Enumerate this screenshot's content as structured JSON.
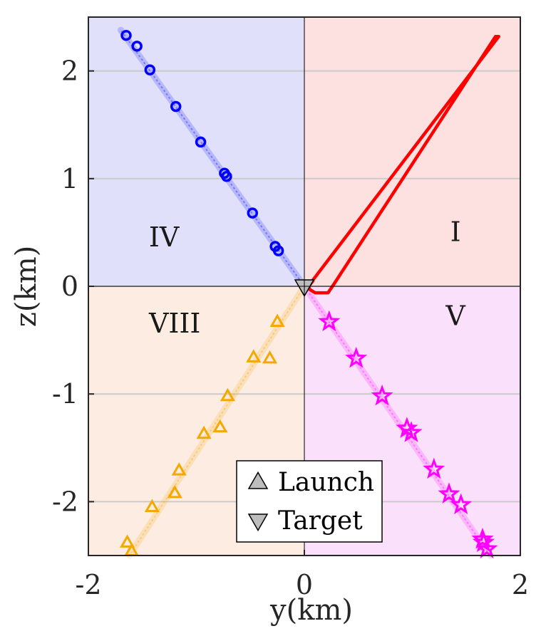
{
  "chart_data": {
    "type": "scatter",
    "xlabel": "y(km)",
    "ylabel": "z(km)",
    "xlim": [
      -2,
      2
    ],
    "ylim": [
      -2.5,
      2.5
    ],
    "x_ticks": [
      -2,
      0,
      2
    ],
    "y_ticks": [
      -2,
      -1,
      0,
      1,
      2
    ],
    "x_tick_labels": [
      "-2",
      "0",
      "2"
    ],
    "y_tick_labels": [
      "-2",
      "-1",
      "0",
      "1",
      "2"
    ],
    "grid": "horizontal lines",
    "legend_position": "bottom-center",
    "legend": [
      {
        "label": "Launch",
        "marker": "triangle-up"
      },
      {
        "label": "Target",
        "marker": "triangle-down"
      }
    ],
    "regions": [
      {
        "label": "I",
        "x": [
          0,
          2
        ],
        "y": [
          0,
          2.5
        ],
        "color": "#fde0e0",
        "label_at": [
          1.4,
          0.5
        ]
      },
      {
        "label": "IV",
        "x": [
          -2,
          0
        ],
        "y": [
          0,
          2.5
        ],
        "color": "#e0e0fa",
        "label_at": [
          -1.3,
          0.45
        ]
      },
      {
        "label": "V",
        "x": [
          0,
          2
        ],
        "y": [
          -2.5,
          0
        ],
        "color": "#fbe0fb",
        "label_at": [
          1.4,
          -0.28
        ]
      },
      {
        "label": "VIII",
        "x": [
          -2,
          0
        ],
        "y": [
          -2.5,
          0
        ],
        "color": "#fdece2",
        "label_at": [
          -1.2,
          -0.35
        ]
      }
    ],
    "target": {
      "x": 0,
      "y": 0
    },
    "series": [
      {
        "color": "#0000ff",
        "marker": "circle",
        "line": [
          [
            0,
            0
          ],
          [
            -1.7,
            2.38
          ]
        ],
        "points": [
          [
            -1.65,
            2.33
          ],
          [
            -1.55,
            2.23
          ],
          [
            -1.43,
            2.01
          ],
          [
            -1.19,
            1.67
          ],
          [
            -0.96,
            1.34
          ],
          [
            -0.74,
            1.05
          ],
          [
            -0.72,
            1.02
          ],
          [
            -0.48,
            0.68
          ],
          [
            -0.27,
            0.37
          ],
          [
            -0.24,
            0.33
          ]
        ]
      },
      {
        "color": "#ff00ff",
        "marker": "star",
        "line": [
          [
            0,
            0
          ],
          [
            1.72,
            -2.5
          ]
        ],
        "points": [
          [
            0.23,
            -0.33
          ],
          [
            0.48,
            -0.67
          ],
          [
            0.72,
            -1.02
          ],
          [
            0.95,
            -1.32
          ],
          [
            0.99,
            -1.36
          ],
          [
            1.2,
            -1.7
          ],
          [
            1.34,
            -1.93
          ],
          [
            1.45,
            -2.03
          ],
          [
            1.65,
            -2.35
          ],
          [
            1.66,
            -2.38
          ],
          [
            1.69,
            -2.44
          ]
        ]
      },
      {
        "color": "#f5a800",
        "marker": "triangle-up",
        "line": [
          [
            0,
            0
          ],
          [
            -1.62,
            -2.5
          ]
        ],
        "points": [
          [
            -0.25,
            -0.33
          ],
          [
            -0.47,
            -0.66
          ],
          [
            -0.32,
            -0.67
          ],
          [
            -0.71,
            -1.02
          ],
          [
            -0.93,
            -1.37
          ],
          [
            -0.78,
            -1.31
          ],
          [
            -1.16,
            -1.71
          ],
          [
            -1.2,
            -1.92
          ],
          [
            -1.41,
            -2.05
          ],
          [
            -1.64,
            -2.38
          ],
          [
            -1.6,
            -2.46
          ]
        ]
      },
      {
        "color": "#ff0000",
        "marker": "none",
        "path": [
          [
            0.05,
            0.02
          ],
          [
            1.8,
            2.32
          ],
          [
            1.77,
            2.32
          ],
          [
            0.28,
            0.03
          ],
          [
            0.22,
            -0.06
          ],
          [
            0.1,
            -0.06
          ],
          [
            0.05,
            -0.03
          ],
          [
            0.04,
            0.0
          ],
          [
            0.08,
            0.05
          ]
        ]
      }
    ]
  }
}
